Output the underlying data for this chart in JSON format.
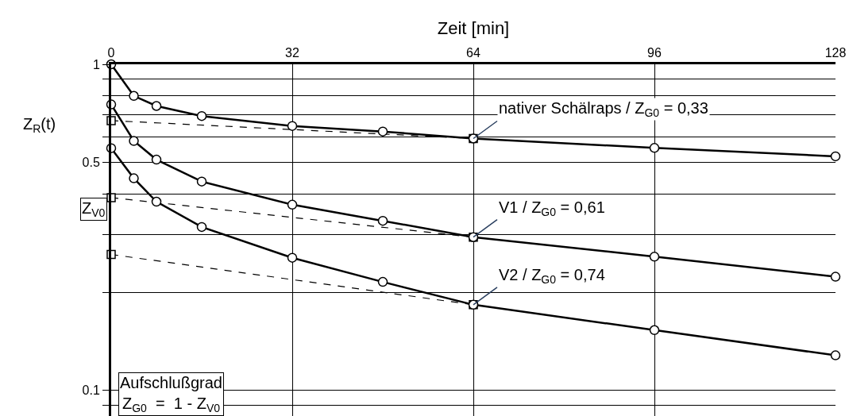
{
  "chart_data": {
    "type": "line",
    "xlabel": "Zeit [min]",
    "ylabel": "Z$_{R}$(t)",
    "xlim": [
      0,
      128
    ],
    "xticks": [
      0,
      32,
      64,
      96,
      128
    ],
    "ylim": [
      0.0834,
      1
    ],
    "log": "y",
    "grid": true,
    "legend": false,
    "yticks": [
      {
        "value": 1,
        "label": "1"
      },
      {
        "value": 0.9,
        "label": null
      },
      {
        "value": 0.8,
        "label": null
      },
      {
        "value": 0.7,
        "label": null
      },
      {
        "value": 0.6,
        "label": null
      },
      0.5,
      {
        "value": 0.4,
        "label": null
      },
      {
        "value": 0.3,
        "label": null
      },
      {
        "value": 0.2,
        "label": null
      },
      0.1,
      {
        "value": 0.09,
        "label": null
      }
    ],
    "series": [
      {
        "name": "nativer Schälraps / Z$_{G0}$ = 0,33",
        "color": "#000000",
        "marker": "circle",
        "line_style": "solid",
        "x": [
          0,
          4,
          8,
          16,
          32,
          48,
          64,
          96,
          128
        ],
        "values": [
          1,
          0.8,
          0.745,
          0.694,
          0.647,
          0.622,
          0.592,
          0.554,
          0.522
        ]
      },
      {
        "name": "V1 / Z$_{G0}$ = 0,61",
        "color": "#000000",
        "marker": "circle",
        "line_style": "solid",
        "x": [
          0,
          4,
          8,
          16,
          32,
          48,
          64,
          96,
          128
        ],
        "values": [
          0.753,
          0.582,
          0.51,
          0.437,
          0.371,
          0.331,
          0.295,
          0.257,
          0.223
        ]
      },
      {
        "name": "V2 / Z$_{G0}$ = 0,74",
        "color": "#000000",
        "marker": "circle",
        "line_style": "solid",
        "x": [
          0,
          4,
          8,
          16,
          32,
          48,
          64,
          96,
          128
        ],
        "values": [
          0.553,
          0.447,
          0.379,
          0.317,
          0.255,
          0.215,
          0.183,
          0.153,
          0.128
        ]
      },
      {
        "color": "#000000",
        "marker": "square",
        "line_style": "dashed",
        "x": [
          0,
          64
        ],
        "values": [
          0.672,
          0.592
        ]
      },
      {
        "color": "#000000",
        "marker": "square",
        "line_style": "dashed",
        "x": [
          0,
          64
        ],
        "values": [
          0.39,
          0.295
        ]
      },
      {
        "color": "#000000",
        "marker": "square",
        "line_style": "dashed",
        "x": [
          0,
          64
        ],
        "values": [
          0.261,
          0.183
        ]
      }
    ],
    "annotations": [
      "Z$_{V0}$",
      "Aufschlußgrad\nZ$_{G0}$  =  1 - Z$_{V0}$"
    ]
  }
}
